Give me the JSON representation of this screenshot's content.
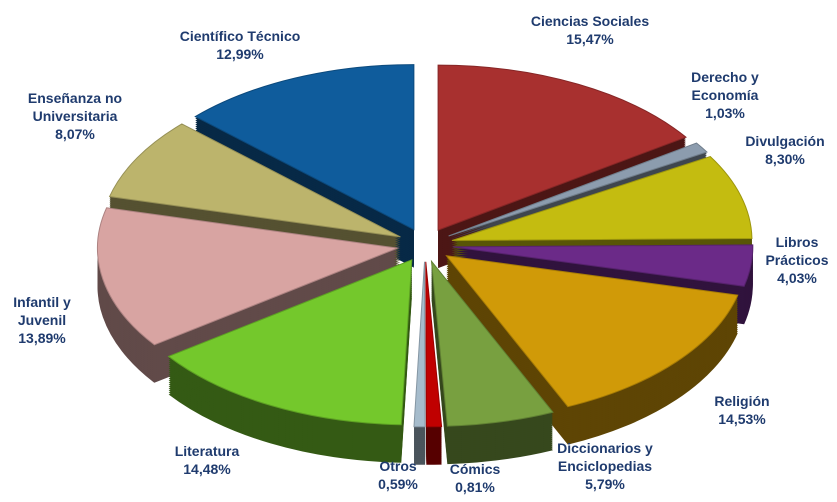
{
  "chart_data": {
    "type": "pie",
    "categories": [
      "Ciencias Sociales",
      "Derecho y Economía",
      "Divulgación",
      "Libros Prácticos",
      "Religión",
      "Diccionarios y Enciclopedias",
      "Cómics",
      "Otros",
      "Literatura",
      "Infantil y Juvenil",
      "Enseñanza no Universitaria",
      "Científico Técnico"
    ],
    "values": [
      15.47,
      1.03,
      8.3,
      4.03,
      14.53,
      5.79,
      0.81,
      0.59,
      14.48,
      13.89,
      8.07,
      12.99
    ],
    "value_labels": [
      "15,47%",
      "1,03%",
      "8,30%",
      "4,03%",
      "14,53%",
      "5,79%",
      "0,81%",
      "0,59%",
      "14,48%",
      "13,89%",
      "8,07%",
      "12,99%"
    ],
    "colors": [
      "#a8302f",
      "#8c9cae",
      "#c4bc10",
      "#6b2a88",
      "#d09a08",
      "#78a040",
      "#c00000",
      "#a6bccc",
      "#74c82c",
      "#d8a4a2",
      "#bcb46c",
      "#0f5c9c"
    ]
  }
}
